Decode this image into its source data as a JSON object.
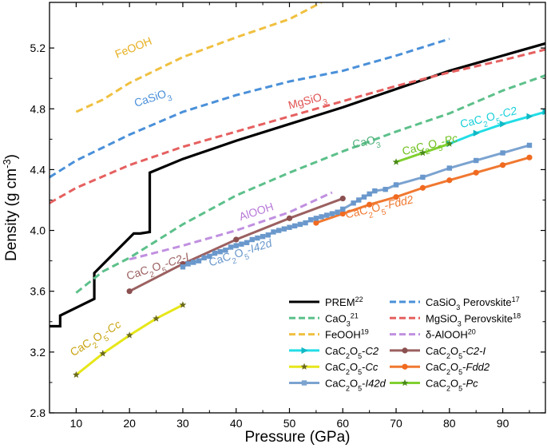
{
  "chart_data": {
    "type": "line",
    "title": "",
    "xlabel": "Pressure (GPa)",
    "ylabel_main": "Density (g cm",
    "ylabel_sup": "-3",
    "ylabel_tail": ")",
    "xlim": [
      5,
      98
    ],
    "ylim": [
      2.8,
      5.5
    ],
    "xticks": [
      10,
      20,
      30,
      40,
      50,
      60,
      70,
      80,
      90
    ],
    "yticks": [
      2.8,
      3.2,
      3.6,
      4.0,
      4.4,
      4.8,
      5.2
    ],
    "ytick_labels": [
      "2.8",
      "3.2",
      "3.6",
      "4.0",
      "4.4",
      "4.8",
      "5.2"
    ],
    "series": [
      {
        "id": "prem",
        "legend": "PREM",
        "sup": "22",
        "color": "#000000",
        "dash": false,
        "marker": "none",
        "x": [
          5,
          7,
          7,
          13.4,
          13.4,
          20.8,
          22,
          23.8,
          23.8,
          30,
          40,
          50,
          60,
          70,
          80,
          90,
          98
        ],
        "y": [
          3.37,
          3.37,
          3.44,
          3.55,
          3.72,
          3.98,
          3.98,
          3.99,
          4.38,
          4.47,
          4.59,
          4.7,
          4.81,
          4.93,
          5.05,
          5.15,
          5.23
        ]
      },
      {
        "id": "casio3",
        "legend": "CaSiO",
        "sub": "3",
        "legend_tail": " Perovskite",
        "sup": "17",
        "color": "#4a90d9",
        "dash": true,
        "marker": "none",
        "x": [
          5,
          10,
          20,
          30,
          40,
          50,
          60,
          70,
          80
        ],
        "y": [
          4.35,
          4.46,
          4.63,
          4.78,
          4.89,
          4.98,
          5.05,
          5.15,
          5.26
        ]
      },
      {
        "id": "mgsio3",
        "legend": "MgSiO",
        "sub": "3",
        "legend_tail": " Perovskite",
        "sup": "18",
        "color": "#e66060",
        "dash": true,
        "marker": "none",
        "x": [
          5,
          10,
          20,
          30,
          40,
          50,
          60,
          70,
          80,
          90,
          98
        ],
        "y": [
          4.18,
          4.28,
          4.43,
          4.55,
          4.65,
          4.75,
          4.85,
          4.95,
          5.04,
          5.12,
          5.19
        ]
      },
      {
        "id": "feooh",
        "legend": "FeOOH",
        "sup": "19",
        "color": "#f0c040",
        "dash": true,
        "marker": "none",
        "x": [
          10,
          15,
          20,
          30,
          40,
          50,
          56
        ],
        "y": [
          4.78,
          4.86,
          4.97,
          5.14,
          5.27,
          5.39,
          5.5
        ]
      },
      {
        "id": "cao3",
        "legend": "CaO",
        "sub": "3",
        "sup": "21",
        "color": "#5cc08a",
        "dash": true,
        "marker": "none",
        "x": [
          10,
          15,
          20,
          30,
          40,
          50,
          60,
          70,
          80,
          90,
          98
        ],
        "y": [
          3.59,
          3.73,
          3.82,
          4.04,
          4.23,
          4.38,
          4.52,
          4.65,
          4.77,
          4.92,
          5.02
        ]
      },
      {
        "id": "alooh",
        "legend": "δ-AlOOH",
        "sup": "20",
        "color": "#c090e0",
        "dash": true,
        "marker": "none",
        "x": [
          20,
          30,
          40,
          50,
          58
        ],
        "y": [
          3.81,
          3.9,
          4.0,
          4.12,
          4.25
        ]
      },
      {
        "id": "c2",
        "legend": "CaC",
        "sub": "2",
        "legend_mid": "O",
        "sub2": "5",
        "phase": "-C2",
        "color": "#22dde6",
        "dash": false,
        "marker": "triangle",
        "x": [
          80,
          85,
          90,
          95,
          98
        ],
        "y": [
          4.57,
          4.64,
          4.7,
          4.75,
          4.78
        ]
      },
      {
        "id": "c2i",
        "legend": "CaC",
        "sub": "2",
        "legend_mid": "O",
        "sub2": "5",
        "phase": "-C2-I",
        "color": "#9b6060",
        "dash": false,
        "marker": "circle",
        "x": [
          20,
          30,
          40,
          50,
          60
        ],
        "y": [
          3.6,
          3.78,
          3.94,
          4.08,
          4.21
        ]
      },
      {
        "id": "cc",
        "legend": "CaC",
        "sub": "2",
        "legend_mid": "O",
        "sub2": "5",
        "phase": "-Cc",
        "color": "#e6e61a",
        "dash": false,
        "marker": "star",
        "x": [
          10,
          15,
          20,
          25,
          30
        ],
        "y": [
          3.05,
          3.19,
          3.31,
          3.42,
          3.51
        ]
      },
      {
        "id": "fdd2",
        "legend": "CaC",
        "sub": "2",
        "legend_mid": "O",
        "sub2": "5",
        "phase": "-Fdd2",
        "color": "#f07830",
        "dash": false,
        "marker": "circle",
        "x": [
          55,
          60,
          65,
          70,
          75,
          80,
          85,
          90,
          95
        ],
        "y": [
          4.05,
          4.11,
          4.17,
          4.22,
          4.28,
          4.33,
          4.38,
          4.43,
          4.48
        ]
      },
      {
        "id": "i42d",
        "legend": "CaC",
        "sub": "2",
        "legend_mid": "O",
        "sub2": "5",
        "phase": "-I42d",
        "color": "#7ba3d0",
        "dash": false,
        "marker": "square",
        "x": [
          30,
          31,
          32,
          33,
          34,
          35,
          36,
          37,
          38,
          39,
          40,
          41,
          42,
          43,
          44,
          45,
          46,
          47,
          48,
          49,
          50,
          51,
          52,
          53,
          54,
          55,
          56,
          57,
          58,
          59,
          60,
          62,
          63,
          64,
          65,
          66,
          68,
          70,
          75,
          80,
          85,
          90,
          95
        ],
        "y": [
          3.76,
          3.78,
          3.79,
          3.8,
          3.82,
          3.83,
          3.85,
          3.86,
          3.87,
          3.89,
          3.9,
          3.91,
          3.92,
          3.94,
          3.95,
          3.96,
          3.97,
          3.99,
          4.0,
          4.01,
          4.02,
          4.03,
          4.04,
          4.05,
          4.07,
          4.08,
          4.09,
          4.1,
          4.11,
          4.12,
          4.14,
          4.18,
          4.2,
          4.22,
          4.24,
          4.26,
          4.27,
          4.3,
          4.35,
          4.41,
          4.46,
          4.51,
          4.56
        ]
      },
      {
        "id": "pc",
        "legend": "CaC",
        "sub": "2",
        "legend_mid": "O",
        "sub2": "5",
        "phase": "-Pc",
        "color": "#80d030",
        "dash": false,
        "marker": "star",
        "x": [
          70,
          75,
          80
        ],
        "y": [
          4.45,
          4.51,
          4.57
        ]
      }
    ],
    "annotations": [
      {
        "id": "feooh",
        "text": "FeOOH",
        "color": "#e6b020",
        "x": 21.0,
        "y": 5.18,
        "rot": -22
      },
      {
        "id": "casio3",
        "text": "CaSiO",
        "sub": "3",
        "color": "#4a90d9",
        "x": 24.5,
        "y": 4.85,
        "rot": -18
      },
      {
        "id": "mgsio3",
        "text": "MgSiO",
        "sub": "3",
        "color": "#e05050",
        "x": 53.5,
        "y": 4.83,
        "rot": -15
      },
      {
        "id": "cao3",
        "text": "CaO",
        "sub": "3",
        "color": "#4caf78",
        "x": 64.5,
        "y": 4.56,
        "rot": -12
      },
      {
        "id": "alooh",
        "text": "AlOOH",
        "color": "#b87ad8",
        "x": 44.0,
        "y": 4.1,
        "rot": -18
      },
      {
        "id": "c2",
        "text": "CaC",
        "sub": "2",
        "mid": "O",
        "sub2": "5",
        "tail": "-C2",
        "color": "#1ad0da",
        "x": 87.5,
        "y": 4.72,
        "rot": -14
      },
      {
        "id": "pc",
        "text": "CaC",
        "sub": "2",
        "mid": "O",
        "sub2": "5",
        "tail": "-Pc",
        "color": "#70c020",
        "x": 76.5,
        "y": 4.54,
        "rot": -14
      },
      {
        "id": "fdd2",
        "text": "CaC",
        "sub": "2",
        "mid": "O",
        "sub2": "5",
        "tail": "-Fdd2",
        "color": "#f07830",
        "x": 67.0,
        "y": 4.13,
        "rot": -13
      },
      {
        "id": "i42d",
        "text": "CaC",
        "sub": "2",
        "mid": "O",
        "sub2": "5",
        "tail": "-I42d",
        "color": "#6a98cc",
        "x": 41.0,
        "y": 3.83,
        "rot": -18
      },
      {
        "id": "c2i",
        "text": "CaC",
        "sub": "2",
        "mid": "O",
        "sub2": "5",
        "tail": "-C2-I",
        "color": "#9b6060",
        "x": 25.5,
        "y": 3.74,
        "rot": -18
      },
      {
        "id": "cc",
        "text": "CaC",
        "sub": "2",
        "mid": "O",
        "sub2": "5",
        "tail": "-Cc",
        "color": "#c8a410",
        "x": 14.0,
        "y": 3.27,
        "rot": -32
      }
    ],
    "legend_position": "bottom-right"
  }
}
